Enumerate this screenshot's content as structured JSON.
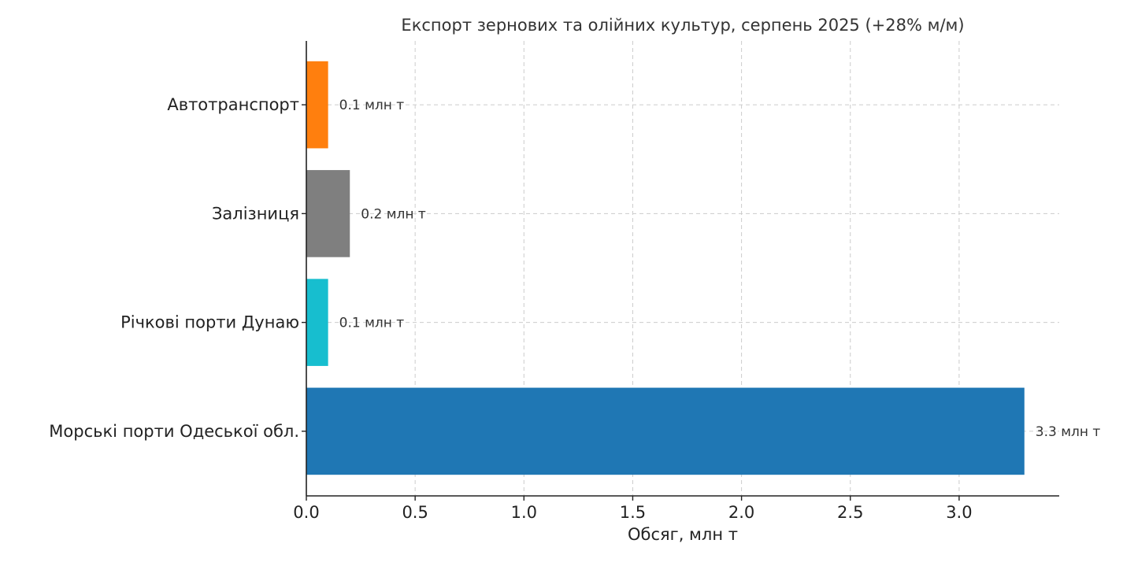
{
  "chart_data": {
    "type": "bar",
    "orientation": "horizontal",
    "title": "Експорт зернових та олійних культур, серпень 2025 (+28% м/м)",
    "xlabel": "Обсяг, млн т",
    "ylabel": "",
    "categories": [
      "Морські порти Одеської обл.",
      "Річкові порти Дунаю",
      "Залізниця",
      "Автотранспорт"
    ],
    "values": [
      3.3,
      0.1,
      0.2,
      0.1
    ],
    "value_labels": [
      "3.3 млн т",
      "0.1 млн т",
      "0.2 млн т",
      "0.1 млн т"
    ],
    "colors": [
      "#1f77b4",
      "#17becf",
      "#7f7f7f",
      "#ff7f0e"
    ],
    "xlim": [
      0,
      3.46
    ],
    "xticks": [
      0.0,
      0.5,
      1.0,
      1.5,
      2.0,
      2.5,
      3.0
    ],
    "xtick_labels": [
      "0.0",
      "0.5",
      "1.0",
      "1.5",
      "2.0",
      "2.5",
      "3.0"
    ],
    "grid": true
  }
}
